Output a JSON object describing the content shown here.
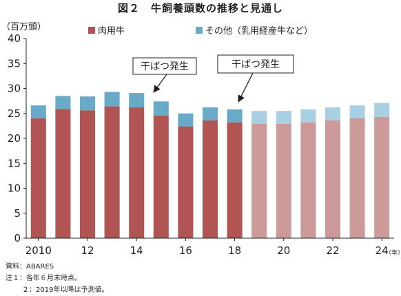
{
  "figure": {
    "title": "図２　牛飼養頭数の推移と見通し",
    "unit_label": "（百万頭）",
    "year_unit": "（年）"
  },
  "legend": [
    {
      "label": "肉用牛",
      "color": "#b05454"
    },
    {
      "label": "その他（乳用経産牛など）",
      "color": "#6aaac9"
    }
  ],
  "colors": {
    "beef": "#b05454",
    "other": "#6aaac9",
    "beef_forecast": "#cc9a99",
    "other_forecast": "#a8d0e2",
    "axis": "#231f20",
    "grid": "#b0b0b0"
  },
  "annotations": [
    {
      "text": "干ばつ発生",
      "year": 2015
    },
    {
      "text": "干ばつ発生",
      "year": 2018
    }
  ],
  "notes": [
    "資料：ABARES",
    "注１：各年６月末時点。",
    "２：2019年以降は予測値。"
  ],
  "chart_data": {
    "type": "bar",
    "stacked": true,
    "x": [
      2010,
      2011,
      2012,
      2013,
      2014,
      2015,
      2016,
      2017,
      2018,
      2019,
      2020,
      2021,
      2022,
      2023,
      2024
    ],
    "x_tick_labels": [
      "2010",
      "12",
      "14",
      "16",
      "18",
      "20",
      "22",
      "24"
    ],
    "x_tick_years": [
      2010,
      2012,
      2014,
      2016,
      2018,
      2020,
      2022,
      2024
    ],
    "forecast_from": 2019,
    "series": [
      {
        "name": "肉用牛",
        "values": [
          24.0,
          25.9,
          25.6,
          26.4,
          26.2,
          24.6,
          22.4,
          23.6,
          23.2,
          22.9,
          22.9,
          23.2,
          23.6,
          24.0,
          24.3
        ]
      },
      {
        "name": "その他（乳用経産牛など）",
        "values": [
          2.6,
          2.6,
          2.8,
          2.9,
          2.9,
          2.8,
          2.6,
          2.6,
          2.6,
          2.6,
          2.6,
          2.6,
          2.6,
          2.6,
          2.8
        ]
      }
    ],
    "ylim": [
      0,
      40
    ],
    "yticks": [
      0,
      5,
      10,
      15,
      20,
      25,
      30,
      35,
      40
    ],
    "grid": false
  }
}
